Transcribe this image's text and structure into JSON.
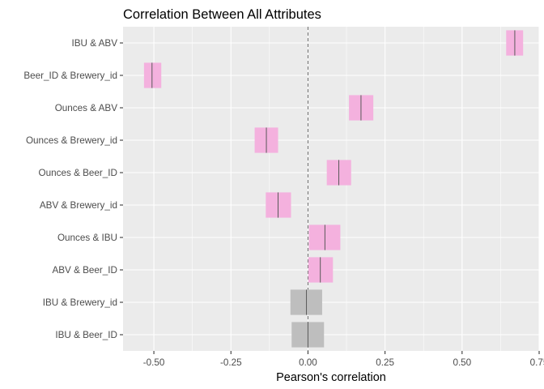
{
  "chart_data": {
    "type": "bar",
    "title": "Correlation Between All Attributes",
    "xlabel": "Pearson's correlation",
    "ylabel": "",
    "xlim": [
      -0.6,
      0.75
    ],
    "x_ticks": [
      -0.5,
      -0.25,
      0.0,
      0.25,
      0.5,
      0.75
    ],
    "x_tick_labels": [
      "-0.50",
      "-0.25",
      "0.00",
      "0.25",
      "0.50",
      "0.75"
    ],
    "grid": true,
    "zero_reference_line": 0,
    "bar_style": "confidence-interval",
    "colors": {
      "significant": "#F4B1DE",
      "not_significant": "#BEBEBE",
      "panel_background": "#EBEBEB"
    },
    "categories": [
      "IBU & ABV",
      "Beer_ID & Brewery_id",
      "Ounces & ABV",
      "Ounces & Brewery_id",
      "Ounces & Beer_ID",
      "ABV & Brewery_id",
      "Ounces & IBU",
      "ABV & Beer_ID",
      "IBU & Brewery_id",
      "IBU & Beer_ID"
    ],
    "estimate": [
      0.671,
      -0.506,
      0.172,
      -0.135,
      0.1,
      -0.097,
      0.055,
      0.04,
      -0.005,
      0.0
    ],
    "lower": [
      0.643,
      -0.532,
      0.133,
      -0.173,
      0.061,
      -0.137,
      0.003,
      0.001,
      -0.057,
      -0.053
    ],
    "upper": [
      0.698,
      -0.476,
      0.212,
      -0.097,
      0.14,
      -0.055,
      0.105,
      0.081,
      0.046,
      0.052
    ],
    "significant": [
      true,
      true,
      true,
      true,
      true,
      true,
      true,
      true,
      false,
      false
    ]
  }
}
